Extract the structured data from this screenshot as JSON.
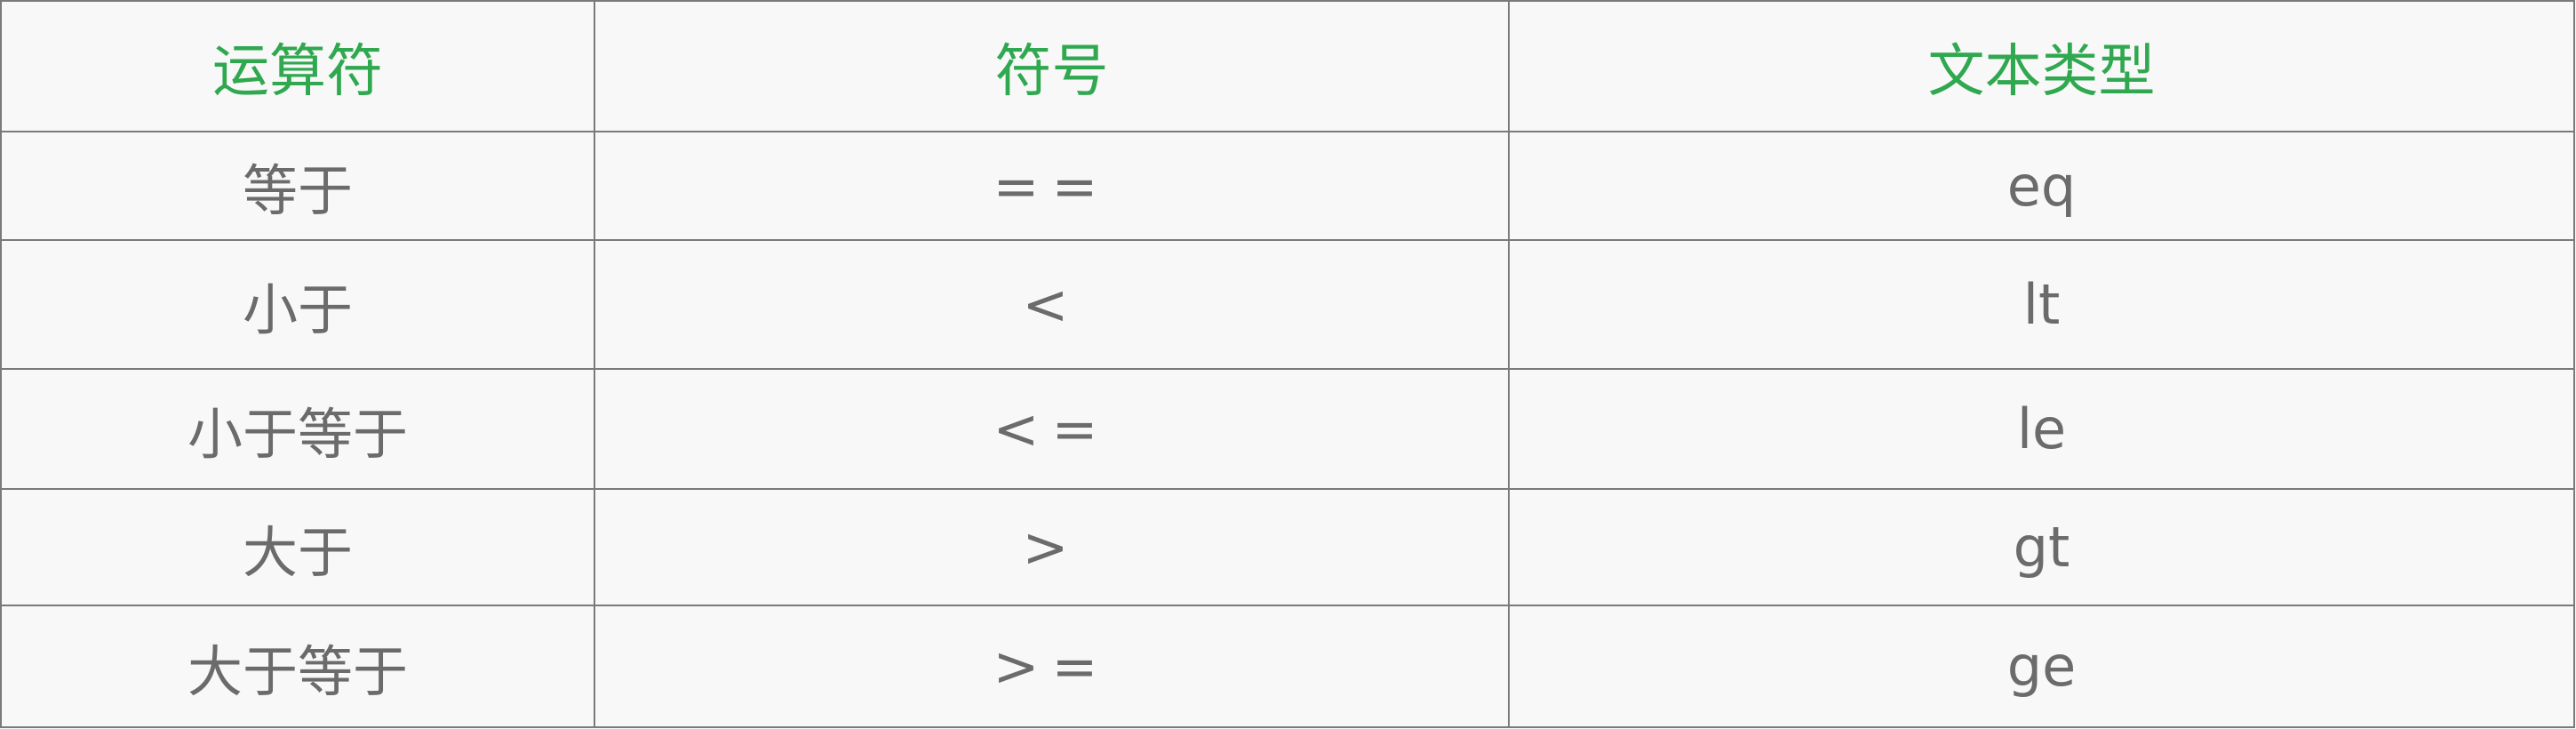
{
  "header": {
    "operator": "运算符",
    "symbol": "符号",
    "text_type": "文本类型",
    "color": "#2fa84f"
  },
  "rows": [
    {
      "operator": "等于",
      "symbol": "==",
      "text_type": "eq"
    },
    {
      "operator": "小于",
      "symbol": "<",
      "text_type": "lt"
    },
    {
      "operator": "小于等于",
      "symbol": "<=",
      "text_type": "le"
    },
    {
      "operator": "大于",
      "symbol": ">",
      "text_type": "gt"
    },
    {
      "operator": "大于等于",
      "symbol": ">=",
      "text_type": "ge"
    }
  ]
}
